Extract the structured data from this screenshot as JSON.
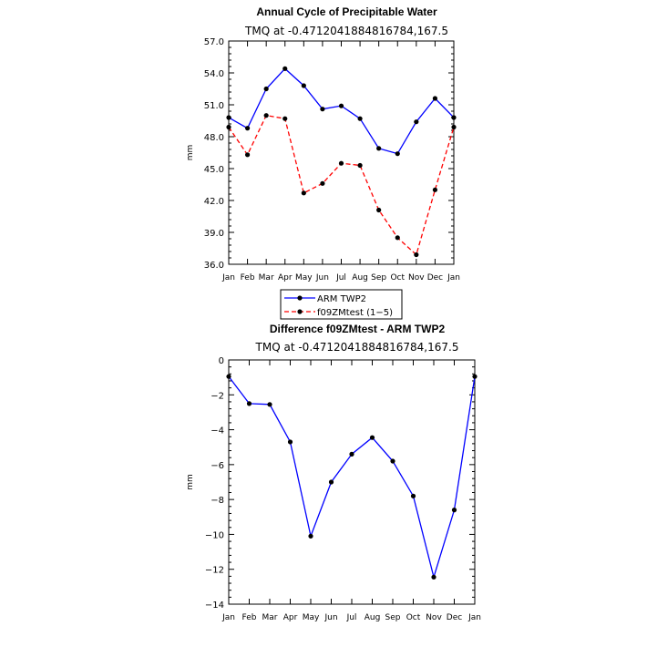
{
  "chart_data": [
    {
      "type": "line",
      "title": "Annual Cycle of Precipitable Water",
      "subtitle": "TMQ at -0.4712041884816784,167.5",
      "ylabel": "mm",
      "xlabel": "",
      "categories": [
        "Jan",
        "Feb",
        "Mar",
        "Apr",
        "May",
        "Jun",
        "Jul",
        "Aug",
        "Sep",
        "Oct",
        "Nov",
        "Dec",
        "Jan"
      ],
      "ylim": [
        36.0,
        57.0
      ],
      "yticks": [
        "36.0",
        "39.0",
        "42.0",
        "45.0",
        "48.0",
        "51.0",
        "54.0",
        "57.0"
      ],
      "grid": false,
      "legend": "below",
      "series": [
        {
          "name": "ARM TWP2",
          "color": "#0000ff",
          "dash": "solid",
          "values": [
            49.8,
            48.8,
            52.5,
            54.4,
            52.8,
            50.6,
            50.9,
            49.7,
            46.9,
            46.4,
            49.4,
            51.6,
            49.8
          ]
        },
        {
          "name": "f09ZMtest (1-5)",
          "color": "#ff0000",
          "dash": "dashed",
          "values": [
            48.9,
            46.3,
            50.0,
            49.7,
            42.7,
            43.6,
            45.5,
            45.3,
            41.1,
            38.5,
            36.9,
            43.0,
            48.9
          ]
        }
      ]
    },
    {
      "type": "line",
      "title": "Difference f09ZMtest - ARM TWP2",
      "subtitle": "TMQ at -0.4712041884816784,167.5",
      "ylabel": "mm",
      "xlabel": "",
      "categories": [
        "Jan",
        "Feb",
        "Mar",
        "Apr",
        "May",
        "Jun",
        "Jul",
        "Aug",
        "Sep",
        "Oct",
        "Nov",
        "Dec",
        "Jan"
      ],
      "ylim": [
        -14,
        0
      ],
      "yticks": [
        "0",
        "-2",
        "-4",
        "-6",
        "-8",
        "-10",
        "-12",
        "-14"
      ],
      "grid": false,
      "series": [
        {
          "color": "#0000ff",
          "dash": "solid",
          "values": [
            -0.95,
            -2.5,
            -2.55,
            -4.7,
            -10.1,
            -7.0,
            -5.4,
            -4.45,
            -5.8,
            -7.8,
            -12.45,
            -8.6,
            -0.95
          ]
        }
      ]
    }
  ]
}
